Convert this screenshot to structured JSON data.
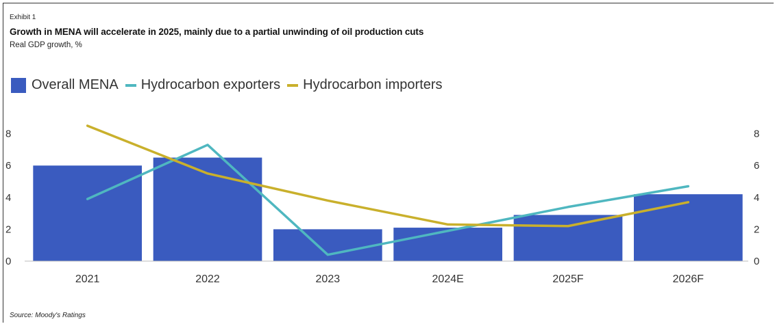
{
  "exhibit": "Exhibit 1",
  "title": "Growth in MENA will accelerate in 2025, mainly due to a partial unwinding of oil production cuts",
  "subtitle": "Real GDP growth, %",
  "source": "Source: Moody's Ratings",
  "legend": [
    {
      "label": "Overall MENA",
      "color": "#3a5bbf",
      "kind": "box"
    },
    {
      "label": "Hydrocarbon exporters",
      "color": "#4fb7c0",
      "kind": "line"
    },
    {
      "label": "Hydrocarbon importers",
      "color": "#c9b02c",
      "kind": "line"
    }
  ],
  "chart_data": {
    "type": "bar",
    "categories": [
      "2021",
      "2022",
      "2023",
      "2024E",
      "2025F",
      "2026F"
    ],
    "series": [
      {
        "name": "Overall MENA",
        "type": "bar",
        "color": "#3a5bbf",
        "values": [
          6.0,
          6.5,
          2.0,
          2.1,
          2.9,
          4.2
        ]
      },
      {
        "name": "Hydrocarbon exporters",
        "type": "line",
        "color": "#4fb7c0",
        "values": [
          3.9,
          7.3,
          0.4,
          1.9,
          3.4,
          4.7
        ]
      },
      {
        "name": "Hydrocarbon importers",
        "type": "line",
        "color": "#c9b02c",
        "values": [
          8.5,
          5.5,
          3.8,
          2.3,
          2.2,
          3.7
        ]
      }
    ],
    "ylim": [
      0,
      8.5
    ],
    "yticks": [
      0,
      2,
      4,
      6,
      8
    ],
    "ytick_labels": [
      "0",
      "2",
      "4",
      "6",
      "8"
    ],
    "secondary_axis": true,
    "grid": false,
    "legend_position": "top-left"
  }
}
